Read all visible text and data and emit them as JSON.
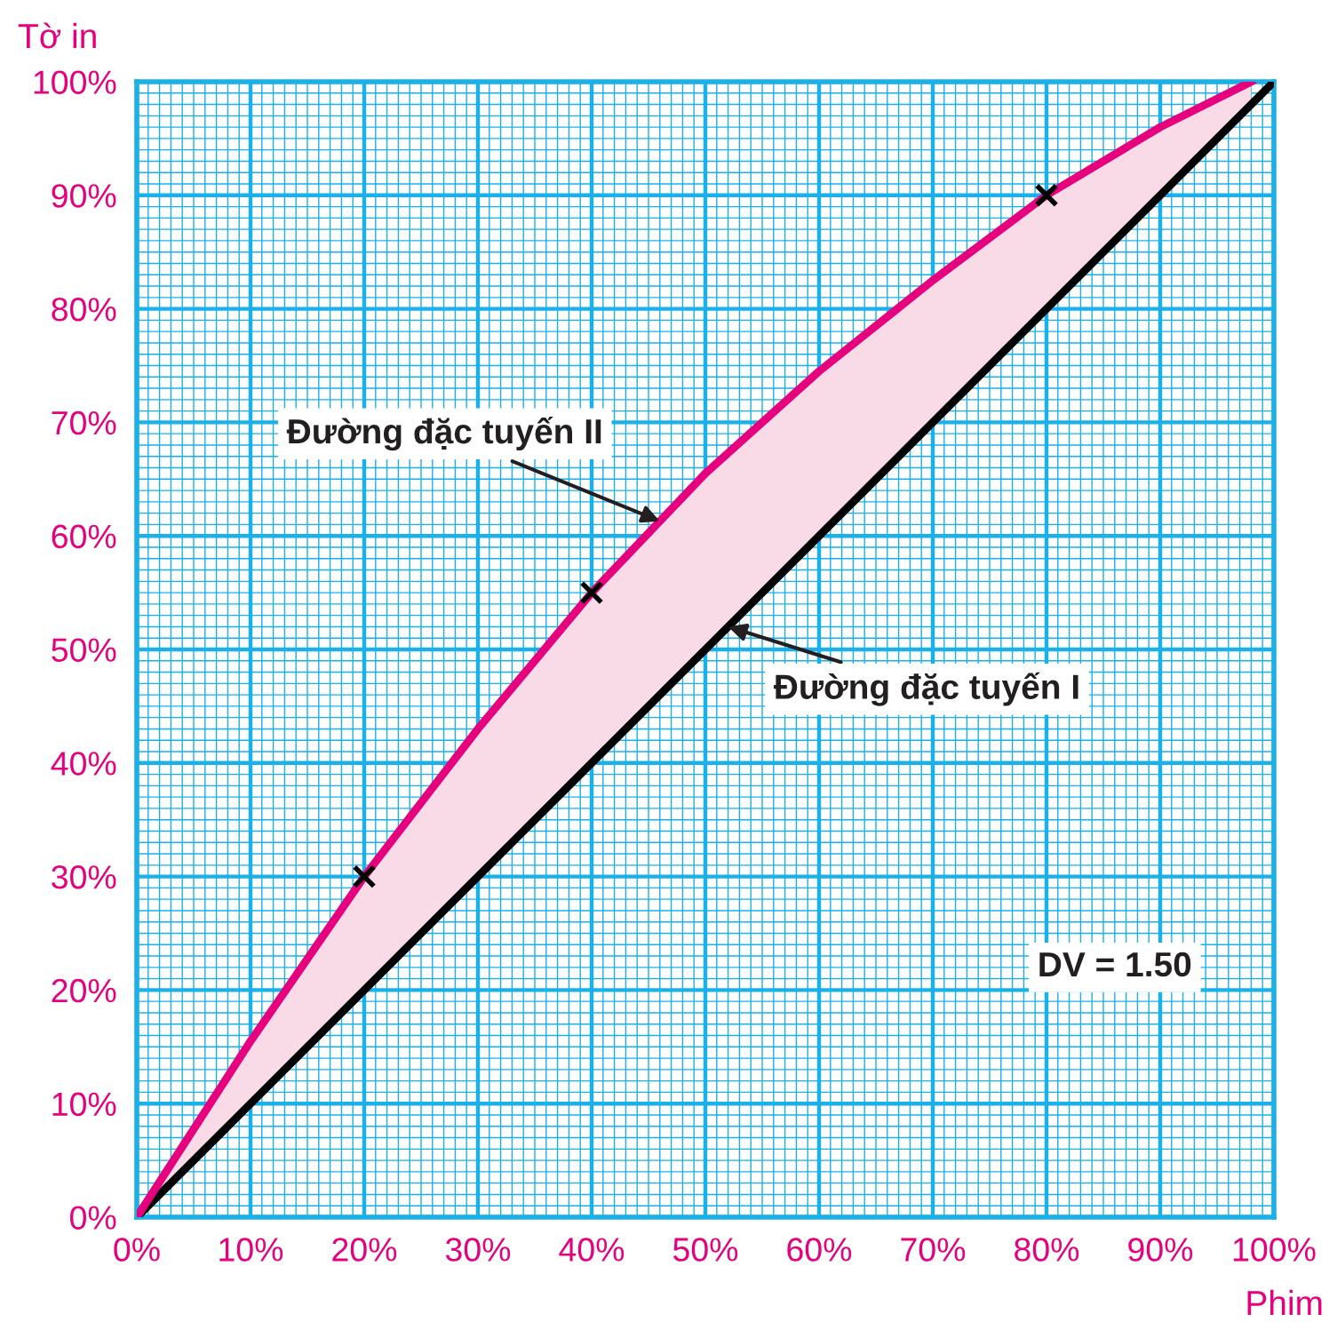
{
  "chart_data": {
    "type": "line",
    "xlabel": "Phim",
    "ylabel": "Tờ in",
    "xlim": [
      0,
      100
    ],
    "ylim": [
      0,
      100
    ],
    "xticks": [
      {
        "value": 0,
        "label": "0%"
      },
      {
        "value": 1,
        "label": null
      },
      {
        "value": 2,
        "label": null
      },
      {
        "value": 3,
        "label": null
      },
      {
        "value": 4,
        "label": null
      },
      {
        "value": 5,
        "label": null
      },
      {
        "value": 6,
        "label": null
      },
      {
        "value": 7,
        "label": null
      },
      {
        "value": 8,
        "label": null
      },
      {
        "value": 9,
        "label": null
      },
      {
        "value": 10,
        "label": "10%"
      },
      {
        "value": 11,
        "label": null
      },
      {
        "value": 12,
        "label": null
      },
      {
        "value": 13,
        "label": null
      },
      {
        "value": 14,
        "label": null
      },
      {
        "value": 15,
        "label": null
      },
      {
        "value": 16,
        "label": null
      },
      {
        "value": 17,
        "label": null
      },
      {
        "value": 18,
        "label": null
      },
      {
        "value": 19,
        "label": null
      },
      {
        "value": 20,
        "label": "20%"
      },
      {
        "value": 21,
        "label": null
      },
      {
        "value": 22,
        "label": null
      },
      {
        "value": 23,
        "label": null
      },
      {
        "value": 24,
        "label": null
      },
      {
        "value": 25,
        "label": null
      },
      {
        "value": 26,
        "label": null
      },
      {
        "value": 27,
        "label": null
      },
      {
        "value": 28,
        "label": null
      },
      {
        "value": 29,
        "label": null
      },
      {
        "value": 30,
        "label": "30%"
      },
      {
        "value": 31,
        "label": null
      },
      {
        "value": 32,
        "label": null
      },
      {
        "value": 33,
        "label": null
      },
      {
        "value": 34,
        "label": null
      },
      {
        "value": 35,
        "label": null
      },
      {
        "value": 36,
        "label": null
      },
      {
        "value": 37,
        "label": null
      },
      {
        "value": 38,
        "label": null
      },
      {
        "value": 39,
        "label": null
      },
      {
        "value": 40,
        "label": "40%"
      },
      {
        "value": 41,
        "label": null
      },
      {
        "value": 42,
        "label": null
      },
      {
        "value": 43,
        "label": null
      },
      {
        "value": 44,
        "label": null
      },
      {
        "value": 45,
        "label": null
      },
      {
        "value": 46,
        "label": null
      },
      {
        "value": 47,
        "label": null
      },
      {
        "value": 48,
        "label": null
      },
      {
        "value": 49,
        "label": null
      },
      {
        "value": 50,
        "label": "50%"
      },
      {
        "value": 51,
        "label": null
      },
      {
        "value": 52,
        "label": null
      },
      {
        "value": 53,
        "label": null
      },
      {
        "value": 54,
        "label": null
      },
      {
        "value": 55,
        "label": null
      },
      {
        "value": 56,
        "label": null
      },
      {
        "value": 57,
        "label": null
      },
      {
        "value": 58,
        "label": null
      },
      {
        "value": 59,
        "label": null
      },
      {
        "value": 60,
        "label": "60%"
      },
      {
        "value": 61,
        "label": null
      },
      {
        "value": 62,
        "label": null
      },
      {
        "value": 63,
        "label": null
      },
      {
        "value": 64,
        "label": null
      },
      {
        "value": 65,
        "label": null
      },
      {
        "value": 66,
        "label": null
      },
      {
        "value": 67,
        "label": null
      },
      {
        "value": 68,
        "label": null
      },
      {
        "value": 69,
        "label": null
      },
      {
        "value": 70,
        "label": "70%"
      },
      {
        "value": 71,
        "label": null
      },
      {
        "value": 72,
        "label": null
      },
      {
        "value": 73,
        "label": null
      },
      {
        "value": 74,
        "label": null
      },
      {
        "value": 75,
        "label": null
      },
      {
        "value": 76,
        "label": null
      },
      {
        "value": 77,
        "label": null
      },
      {
        "value": 78,
        "label": null
      },
      {
        "value": 79,
        "label": null
      },
      {
        "value": 80,
        "label": "80%"
      },
      {
        "value": 81,
        "label": null
      },
      {
        "value": 82,
        "label": null
      },
      {
        "value": 83,
        "label": null
      },
      {
        "value": 84,
        "label": null
      },
      {
        "value": 85,
        "label": null
      },
      {
        "value": 86,
        "label": null
      },
      {
        "value": 87,
        "label": null
      },
      {
        "value": 88,
        "label": null
      },
      {
        "value": 89,
        "label": null
      },
      {
        "value": 90,
        "label": "90%"
      },
      {
        "value": 91,
        "label": null
      },
      {
        "value": 92,
        "label": null
      },
      {
        "value": 93,
        "label": null
      },
      {
        "value": 94,
        "label": null
      },
      {
        "value": 95,
        "label": null
      },
      {
        "value": 96,
        "label": null
      },
      {
        "value": 97,
        "label": null
      },
      {
        "value": 98,
        "label": null
      },
      {
        "value": 99,
        "label": null
      },
      {
        "value": 100,
        "label": "100%"
      }
    ],
    "yticks": [
      {
        "value": 0,
        "label": "0%"
      },
      {
        "value": 1,
        "label": null
      },
      {
        "value": 2,
        "label": null
      },
      {
        "value": 3,
        "label": null
      },
      {
        "value": 4,
        "label": null
      },
      {
        "value": 5,
        "label": null
      },
      {
        "value": 6,
        "label": null
      },
      {
        "value": 7,
        "label": null
      },
      {
        "value": 8,
        "label": null
      },
      {
        "value": 9,
        "label": null
      },
      {
        "value": 10,
        "label": "10%"
      },
      {
        "value": 11,
        "label": null
      },
      {
        "value": 12,
        "label": null
      },
      {
        "value": 13,
        "label": null
      },
      {
        "value": 14,
        "label": null
      },
      {
        "value": 15,
        "label": null
      },
      {
        "value": 16,
        "label": null
      },
      {
        "value": 17,
        "label": null
      },
      {
        "value": 18,
        "label": null
      },
      {
        "value": 19,
        "label": null
      },
      {
        "value": 20,
        "label": "20%"
      },
      {
        "value": 21,
        "label": null
      },
      {
        "value": 22,
        "label": null
      },
      {
        "value": 23,
        "label": null
      },
      {
        "value": 24,
        "label": null
      },
      {
        "value": 25,
        "label": null
      },
      {
        "value": 26,
        "label": null
      },
      {
        "value": 27,
        "label": null
      },
      {
        "value": 28,
        "label": null
      },
      {
        "value": 29,
        "label": null
      },
      {
        "value": 30,
        "label": "30%"
      },
      {
        "value": 31,
        "label": null
      },
      {
        "value": 32,
        "label": null
      },
      {
        "value": 33,
        "label": null
      },
      {
        "value": 34,
        "label": null
      },
      {
        "value": 35,
        "label": null
      },
      {
        "value": 36,
        "label": null
      },
      {
        "value": 37,
        "label": null
      },
      {
        "value": 38,
        "label": null
      },
      {
        "value": 39,
        "label": null
      },
      {
        "value": 40,
        "label": "40%"
      },
      {
        "value": 41,
        "label": null
      },
      {
        "value": 42,
        "label": null
      },
      {
        "value": 43,
        "label": null
      },
      {
        "value": 44,
        "label": null
      },
      {
        "value": 45,
        "label": null
      },
      {
        "value": 46,
        "label": null
      },
      {
        "value": 47,
        "label": null
      },
      {
        "value": 48,
        "label": null
      },
      {
        "value": 49,
        "label": null
      },
      {
        "value": 50,
        "label": "50%"
      },
      {
        "value": 51,
        "label": null
      },
      {
        "value": 52,
        "label": null
      },
      {
        "value": 53,
        "label": null
      },
      {
        "value": 54,
        "label": null
      },
      {
        "value": 55,
        "label": null
      },
      {
        "value": 56,
        "label": null
      },
      {
        "value": 57,
        "label": null
      },
      {
        "value": 58,
        "label": null
      },
      {
        "value": 59,
        "label": null
      },
      {
        "value": 60,
        "label": "60%"
      },
      {
        "value": 61,
        "label": null
      },
      {
        "value": 62,
        "label": null
      },
      {
        "value": 63,
        "label": null
      },
      {
        "value": 64,
        "label": null
      },
      {
        "value": 65,
        "label": null
      },
      {
        "value": 66,
        "label": null
      },
      {
        "value": 67,
        "label": null
      },
      {
        "value": 68,
        "label": null
      },
      {
        "value": 69,
        "label": null
      },
      {
        "value": 70,
        "label": "70%"
      },
      {
        "value": 71,
        "label": null
      },
      {
        "value": 72,
        "label": null
      },
      {
        "value": 73,
        "label": null
      },
      {
        "value": 74,
        "label": null
      },
      {
        "value": 75,
        "label": null
      },
      {
        "value": 76,
        "label": null
      },
      {
        "value": 77,
        "label": null
      },
      {
        "value": 78,
        "label": null
      },
      {
        "value": 79,
        "label": null
      },
      {
        "value": 80,
        "label": "80%"
      },
      {
        "value": 81,
        "label": null
      },
      {
        "value": 82,
        "label": null
      },
      {
        "value": 83,
        "label": null
      },
      {
        "value": 84,
        "label": null
      },
      {
        "value": 85,
        "label": null
      },
      {
        "value": 86,
        "label": null
      },
      {
        "value": 87,
        "label": null
      },
      {
        "value": 88,
        "label": null
      },
      {
        "value": 89,
        "label": null
      },
      {
        "value": 90,
        "label": "90%"
      },
      {
        "value": 91,
        "label": null
      },
      {
        "value": 92,
        "label": null
      },
      {
        "value": 93,
        "label": null
      },
      {
        "value": 94,
        "label": null
      },
      {
        "value": 95,
        "label": null
      },
      {
        "value": 96,
        "label": null
      },
      {
        "value": 97,
        "label": null
      },
      {
        "value": 98,
        "label": null
      },
      {
        "value": 99,
        "label": null
      },
      {
        "value": 100,
        "label": "100%"
      }
    ],
    "grid": true,
    "series": [
      {
        "color": "#000000",
        "x": [
          0,
          100
        ],
        "values": [
          0,
          100
        ]
      },
      {
        "color": "#e6007e",
        "x": [
          0,
          10,
          20,
          30,
          40,
          50,
          60,
          70,
          80,
          90,
          98
        ],
        "values": [
          0,
          15.5,
          30,
          43,
          55,
          65.5,
          74.5,
          82.5,
          90,
          96,
          100
        ]
      },
      {
        "type": "scatter",
        "color": "#000000",
        "marker": "cross",
        "x": [
          20,
          40,
          80
        ],
        "values": [
          30,
          55,
          90
        ]
      }
    ],
    "annotations": [
      {
        "text": "Đường đặc tuyến II",
        "x": 46,
        "y": 61.3
      },
      {
        "text": "Đường đặc tuyến I",
        "x": 52,
        "y": 52
      },
      "DV = 1.50"
    ]
  }
}
